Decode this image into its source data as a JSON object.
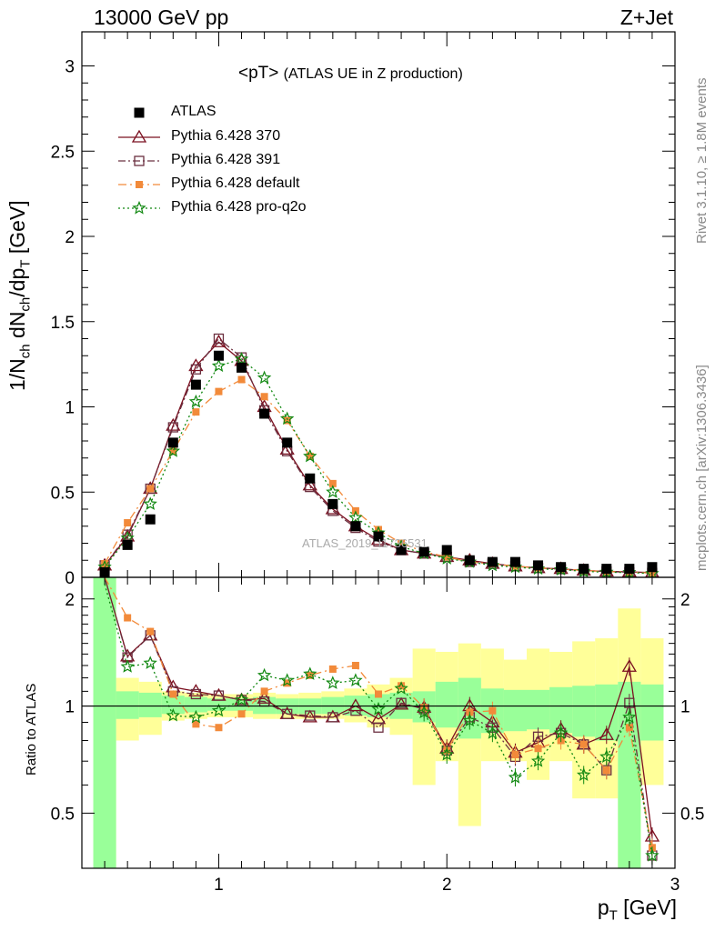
{
  "header": {
    "energy_label": "13000 GeV pp",
    "process_label": "Z+Jet"
  },
  "plot_title": {
    "main": "<pT>",
    "sub": "(ATLAS UE in Z production)"
  },
  "side_labels": {
    "rivet": "Rivet 3.1.10, ≥ 1.8M events",
    "mcplots": "mcplots.cern.ch [arXiv:1306.3436]"
  },
  "watermark": "ATLAS_2019_I1736531",
  "axes": {
    "ylabel_main": "1/N_ch dN_ch/dp_T [GeV]",
    "ylabel_ratio": "Ratio to ATLAS",
    "xlabel": "p_T [GeV]"
  },
  "chart_data": [
    {
      "type": "scatter",
      "xlim": [
        0.4,
        3.0
      ],
      "ylim": [
        0,
        3.2
      ],
      "xticks": [
        1,
        2,
        3
      ],
      "yticks": [
        0,
        0.5,
        1,
        1.5,
        2,
        2.5,
        3
      ],
      "ytick_labels": [
        "0",
        "0.5",
        "1",
        "1.5",
        "2",
        "2.5",
        "3"
      ],
      "x": [
        0.5,
        0.6,
        0.7,
        0.8,
        0.9,
        1.0,
        1.1,
        1.2,
        1.3,
        1.4,
        1.5,
        1.6,
        1.7,
        1.8,
        1.9,
        2.0,
        2.1,
        2.2,
        2.3,
        2.4,
        2.5,
        2.6,
        2.7,
        2.8,
        2.9
      ],
      "legend": [
        "ATLAS",
        "Pythia 6.428 370",
        "Pythia 6.428 391",
        "Pythia 6.428 default",
        "Pythia 6.428 pro-q2o"
      ],
      "series": [
        {
          "name": "ATLAS",
          "color": "#000000",
          "marker": "filled-square",
          "values": [
            0.03,
            0.19,
            0.34,
            0.79,
            1.13,
            1.3,
            1.23,
            0.96,
            0.79,
            0.58,
            0.43,
            0.3,
            0.24,
            0.16,
            0.15,
            0.16,
            0.1,
            0.09,
            0.09,
            0.07,
            0.06,
            0.05,
            0.05,
            0.05,
            0.06
          ]
        },
        {
          "name": "Pythia 6.428 370",
          "color": "#7b1020",
          "marker": "open-triangle",
          "dash": "",
          "values": [
            0.07,
            0.24,
            0.52,
            0.89,
            1.24,
            1.38,
            1.27,
            1.0,
            0.75,
            0.54,
            0.4,
            0.3,
            0.22,
            0.16,
            0.14,
            0.12,
            0.1,
            0.08,
            0.065,
            0.055,
            0.05,
            0.04,
            0.035,
            0.032,
            0.028
          ]
        },
        {
          "name": "Pythia 6.428 391",
          "color": "#6b3040",
          "marker": "open-square",
          "dash": "8,3,2,3",
          "values": [
            0.07,
            0.25,
            0.52,
            0.88,
            1.22,
            1.4,
            1.29,
            0.98,
            0.74,
            0.53,
            0.39,
            0.29,
            0.21,
            0.16,
            0.14,
            0.12,
            0.09,
            0.08,
            0.065,
            0.055,
            0.048,
            0.04,
            0.034,
            0.03,
            0.026
          ]
        },
        {
          "name": "Pythia 6.428 default",
          "color": "#f28a3a",
          "marker": "filled-square",
          "dash": "9,4,2,4",
          "values": [
            0.08,
            0.32,
            0.52,
            0.74,
            0.97,
            1.09,
            1.16,
            1.06,
            0.92,
            0.71,
            0.55,
            0.39,
            0.28,
            0.2,
            0.15,
            0.12,
            0.09,
            0.08,
            0.065,
            0.055,
            0.048,
            0.04,
            0.034,
            0.03,
            0.025
          ]
        },
        {
          "name": "Pythia 6.428 pro-q2o",
          "color": "#118811",
          "marker": "star",
          "dash": "2,3",
          "values": [
            0.06,
            0.23,
            0.43,
            0.74,
            1.03,
            1.24,
            1.28,
            1.17,
            0.93,
            0.71,
            0.5,
            0.35,
            0.26,
            0.18,
            0.14,
            0.11,
            0.09,
            0.07,
            0.06,
            0.05,
            0.045,
            0.035,
            0.03,
            0.028,
            0.022
          ]
        }
      ]
    },
    {
      "type": "scatter",
      "xlim": [
        0.4,
        3.0
      ],
      "ylim": [
        0.35,
        2.3
      ],
      "xticks": [
        1,
        2,
        3
      ],
      "xtick_labels": [
        "1",
        "2",
        "3"
      ],
      "yticks": [
        0.5,
        1,
        2
      ],
      "ytick_labels": [
        "0.5",
        "1",
        "2"
      ],
      "reference_line": 1,
      "x": [
        0.5,
        0.6,
        0.7,
        0.8,
        0.9,
        1.0,
        1.1,
        1.2,
        1.3,
        1.4,
        1.5,
        1.6,
        1.7,
        1.8,
        1.9,
        2.0,
        2.1,
        2.2,
        2.3,
        2.4,
        2.5,
        2.6,
        2.7,
        2.8,
        2.9
      ],
      "bands": {
        "stat_green_lo": [
          0.35,
          0.92,
          0.93,
          0.95,
          0.96,
          0.97,
          0.97,
          0.95,
          0.95,
          0.95,
          0.95,
          0.94,
          0.93,
          0.92,
          0.9,
          0.87,
          0.81,
          0.84,
          0.85,
          0.86,
          0.84,
          0.82,
          0.8,
          0.35,
          0.8
        ],
        "stat_green_hi": [
          2.3,
          1.1,
          1.09,
          1.07,
          1.06,
          1.05,
          1.05,
          1.06,
          1.05,
          1.05,
          1.06,
          1.07,
          1.08,
          1.09,
          1.1,
          1.17,
          1.2,
          1.12,
          1.11,
          1.11,
          1.13,
          1.14,
          1.15,
          1.17,
          1.15
        ],
        "total_yellow_lo": [
          0.35,
          0.8,
          0.83,
          0.91,
          0.92,
          0.93,
          0.93,
          0.92,
          0.92,
          0.92,
          0.92,
          0.9,
          0.87,
          0.83,
          0.6,
          0.7,
          0.46,
          0.7,
          0.7,
          0.62,
          0.7,
          0.55,
          0.55,
          0.35,
          0.6
        ],
        "total_yellow_hi": [
          2.3,
          1.2,
          1.17,
          1.1,
          1.09,
          1.08,
          1.08,
          1.09,
          1.08,
          1.09,
          1.1,
          1.12,
          1.15,
          1.2,
          1.45,
          1.42,
          1.5,
          1.45,
          1.35,
          1.45,
          1.42,
          1.52,
          1.55,
          1.88,
          1.55
        ]
      },
      "series": [
        {
          "name": "Pythia 6.428 370",
          "values": [
            2.3,
            1.38,
            1.58,
            1.13,
            1.1,
            1.07,
            1.04,
            1.05,
            0.95,
            0.93,
            0.93,
            1.0,
            0.92,
            1.01,
            0.99,
            0.76,
            1.0,
            0.9,
            0.74,
            0.79,
            0.86,
            0.78,
            0.83,
            1.29,
            0.43
          ]
        },
        {
          "name": "Pythia 6.428 391",
          "values": [
            2.3,
            1.37,
            1.58,
            1.1,
            1.08,
            1.07,
            1.04,
            1.03,
            0.95,
            0.94,
            0.93,
            0.97,
            0.87,
            1.02,
            0.98,
            0.75,
            0.93,
            0.87,
            0.72,
            0.82,
            0.84,
            0.78,
            0.66,
            1.02,
            0.38
          ]
        },
        {
          "name": "Pythia 6.428 default",
          "values": [
            2.3,
            1.77,
            1.62,
            1.08,
            0.89,
            0.87,
            0.95,
            1.1,
            1.16,
            1.22,
            1.27,
            1.3,
            1.08,
            1.14,
            0.99,
            0.75,
            0.96,
            0.97,
            0.73,
            0.76,
            0.8,
            0.78,
            0.66,
            0.87,
            0.4
          ]
        },
        {
          "name": "Pythia 6.428 pro-q2o",
          "values": [
            2.2,
            1.29,
            1.32,
            0.94,
            0.93,
            0.97,
            1.04,
            1.22,
            1.18,
            1.23,
            1.16,
            1.18,
            0.98,
            1.12,
            0.96,
            0.73,
            0.91,
            0.84,
            0.63,
            0.7,
            0.84,
            0.64,
            0.72,
            0.93,
            0.38
          ]
        }
      ]
    }
  ]
}
